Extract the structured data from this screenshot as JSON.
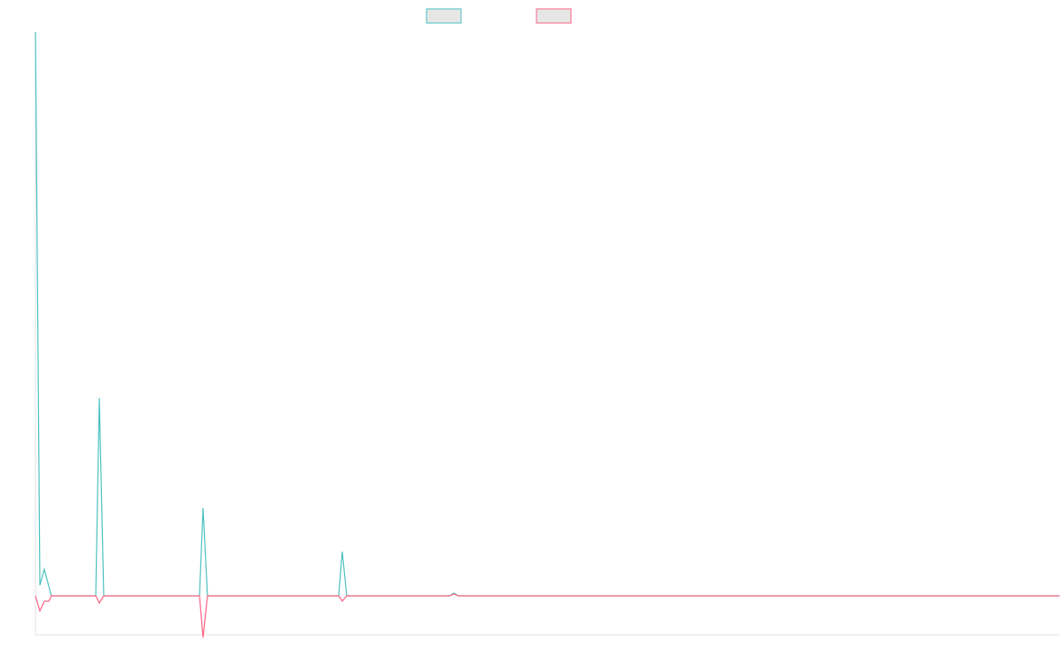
{
  "chart_data": {
    "type": "line",
    "x": [
      0,
      5,
      10,
      15,
      18,
      68,
      72,
      77,
      185,
      189,
      194,
      342,
      346,
      351,
      467,
      472,
      477,
      1155
    ],
    "series": [
      {
        "color": "#4bc0c0",
        "values": [
          636,
          12,
          30,
          11,
          0,
          0,
          223,
          0,
          0,
          99,
          0,
          0,
          50,
          0,
          0,
          3,
          0,
          0
        ]
      },
      {
        "color": "#ff6384",
        "values": [
          0,
          -17,
          -6,
          -6,
          0,
          0,
          -8,
          0,
          0,
          -47,
          0,
          0,
          -6,
          0,
          0,
          2,
          0,
          0
        ]
      }
    ],
    "xlim": [
      0,
      1155
    ],
    "ylim": [
      -44,
      636
    ],
    "legend": "top"
  }
}
